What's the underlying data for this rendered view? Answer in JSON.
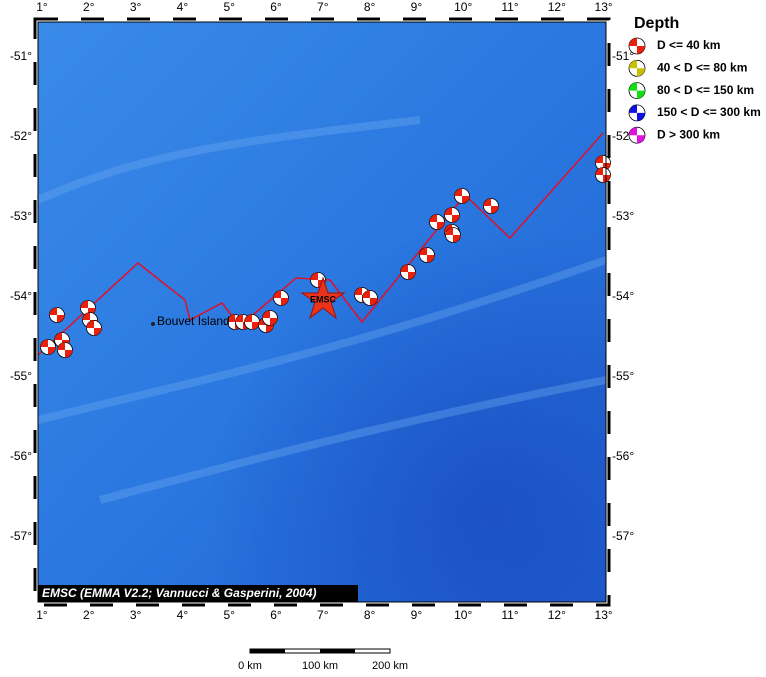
{
  "map": {
    "lon_labels": [
      "1°",
      "2°",
      "3°",
      "4°",
      "5°",
      "6°",
      "7°",
      "8°",
      "9°",
      "10°",
      "11°",
      "12°",
      "13°"
    ],
    "lat_labels": [
      "-51°",
      "-52°",
      "-53°",
      "-54°",
      "-55°",
      "-56°",
      "-57°"
    ],
    "island": "Bouvet Island",
    "epicenter": "EMSC",
    "credit": "EMSC (EMMA V2.2; Vannucci & Gasperini, 2004)",
    "scale": [
      "0 km",
      "100 km",
      "200 km"
    ]
  },
  "legend": {
    "title": "Depth",
    "entries": [
      {
        "label": "D <= 40 km",
        "color": "#e8200c"
      },
      {
        "label": "40 < D <= 80 km",
        "color": "#c8c000"
      },
      {
        "label": "80 < D <= 150 km",
        "color": "#10e010"
      },
      {
        "label": "150 < D <= 300 km",
        "color": "#1010e0"
      },
      {
        "label": "D > 300 km",
        "color": "#e010e0"
      }
    ]
  }
}
